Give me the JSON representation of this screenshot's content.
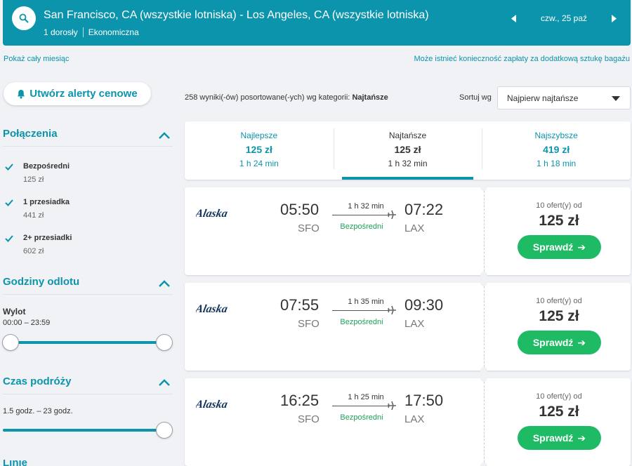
{
  "header": {
    "route": "San Francisco, CA (wszystkie lotniska) - Los Angeles, CA (wszystkie lotniska)",
    "passengers": "1 dorosły",
    "cabin": "Ekonomiczna",
    "date": "czw., 25 paź"
  },
  "links": {
    "month": "Pokaż cały miesiąc",
    "baggage": "Może istnieć konieczność zapłaty za dodatkową sztukę bagażu"
  },
  "sidebar": {
    "alert_button": "Utwórz alerty cenowe",
    "connections": {
      "title": "Połączenia",
      "items": [
        {
          "label": "Bezpośredni",
          "price": "125 zł",
          "checked": true
        },
        {
          "label": "1 przesiadka",
          "price": "441 zł",
          "checked": true
        },
        {
          "label": "2+ przesiadki",
          "price": "602 zł",
          "checked": true
        }
      ]
    },
    "departure": {
      "title": "Godziny odlotu",
      "label": "Wylot",
      "range": "00:00 – 23:59"
    },
    "duration": {
      "title": "Czas podróży",
      "range": "1.5 godz. – 23 godz."
    },
    "next_title": "Linie lotnicze"
  },
  "results": {
    "count_text": "258 wyniki(-ów) posortowane(-ych) wg kategorii:",
    "count_category": "Najtańsze",
    "sort_label": "Sortuj wg",
    "sort_value": "Najpierw najtańsze"
  },
  "tabs": [
    {
      "label": "Najlepsze",
      "price": "125 zł",
      "duration": "1 h 24 min",
      "active": false
    },
    {
      "label": "Najtańsze",
      "price": "125 zł",
      "duration": "1 h 32 min",
      "active": true
    },
    {
      "label": "Najszybsze",
      "price": "419 zł",
      "duration": "1 h 18 min",
      "active": false
    }
  ],
  "flights": [
    {
      "airline": "Alaska",
      "dep_time": "05:50",
      "dep_code": "SFO",
      "arr_time": "07:22",
      "arr_code": "LAX",
      "duration": "1 h 32 min",
      "stops": "Bezpośredni",
      "offers": "10 ofert(y) od",
      "price": "125 zł",
      "button": "Sprawdź"
    },
    {
      "airline": "Alaska",
      "dep_time": "07:55",
      "dep_code": "SFO",
      "arr_time": "09:30",
      "arr_code": "LAX",
      "duration": "1 h 35 min",
      "stops": "Bezpośredni",
      "offers": "10 ofert(y) od",
      "price": "125 zł",
      "button": "Sprawdź"
    },
    {
      "airline": "Alaska",
      "dep_time": "16:25",
      "dep_code": "SFO",
      "arr_time": "17:50",
      "arr_code": "LAX",
      "duration": "1 h 25 min",
      "stops": "Bezpośredni",
      "offers": "10 ofert(y) od",
      "price": "125 zł",
      "button": "Sprawdź"
    }
  ],
  "colors": {
    "accent": "#0b94ab",
    "cta": "#1fbb64",
    "direct": "#1fa05a"
  },
  "icons": {
    "search": "search-icon",
    "bell": "bell-icon",
    "plane": "plane-icon",
    "chevron": "chevron-up-icon"
  }
}
